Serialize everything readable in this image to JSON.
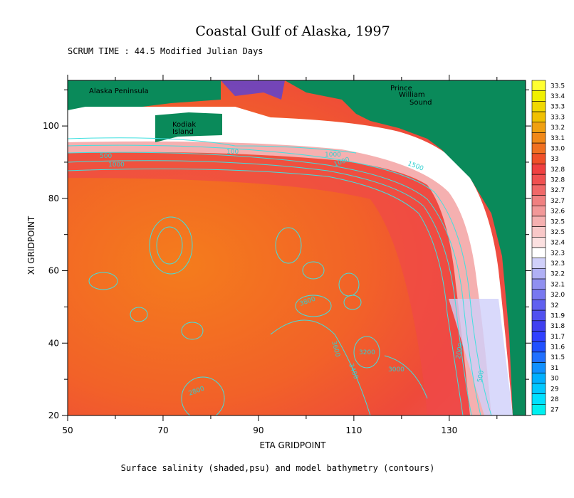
{
  "header": {
    "title": "Coastal Gulf of Alaska, 1997",
    "subtitle": "SCRUM TIME : 44.5 Modified Julian Days"
  },
  "map": {
    "xlabel": "ETA GRIDPOINT",
    "ylabel": "XI GRIDPOINT",
    "xlim": [
      50,
      146
    ],
    "ylim": [
      20,
      112.6
    ],
    "xticks": [
      50,
      70,
      90,
      110,
      130
    ],
    "xminorticks": [
      60,
      80,
      100,
      120,
      140
    ],
    "yticks": [
      20,
      40,
      60,
      80,
      100
    ],
    "yminorticks": [
      30,
      50,
      70,
      90,
      110
    ],
    "place_labels": [
      "Alaska Peninsula",
      "Prince",
      "William",
      "Sound",
      "Kodiak",
      "Island"
    ],
    "contour_labels": [
      "100",
      "500",
      "1000",
      "1000",
      "1000",
      "1500",
      "3800",
      "3600",
      "3400",
      "3200",
      "3000",
      "2000",
      "500",
      "2800"
    ]
  },
  "colorbar": {
    "labels": [
      "33.5",
      "33.4",
      "33.3",
      "33.3",
      "33.2",
      "33.1",
      "33.0",
      "33",
      "32.8",
      "32.8",
      "32.7",
      "32.7",
      "32.6",
      "32.5",
      "32.5",
      "32.4",
      "32.3",
      "32.3",
      "32.2",
      "32.1",
      "32.0",
      "32",
      "31.9",
      "31.8",
      "31.7",
      "31.6",
      "31.5",
      "31",
      "30",
      "29",
      "28",
      "27"
    ],
    "colors": [
      "#ffff30",
      "#f0f000",
      "#f0d800",
      "#f0c000",
      "#f0a010",
      "#f08818",
      "#f07020",
      "#f05028",
      "#f04040",
      "#f05050",
      "#f06868",
      "#f08080",
      "#f29898",
      "#f5b0b0",
      "#f8c8c8",
      "#fbe0e0",
      "#ffffff",
      "#d0d0fa",
      "#b0b0f5",
      "#9090f0",
      "#7878f0",
      "#6060f0",
      "#5050f0",
      "#4040f0",
      "#3040ff",
      "#2050ff",
      "#2070ff",
      "#1090ff",
      "#00b0ff",
      "#00c8ff",
      "#00e0ff",
      "#00f0f0"
    ]
  },
  "caption": "Surface salinity (shaded,psu) and model bathymetry (contours)"
}
